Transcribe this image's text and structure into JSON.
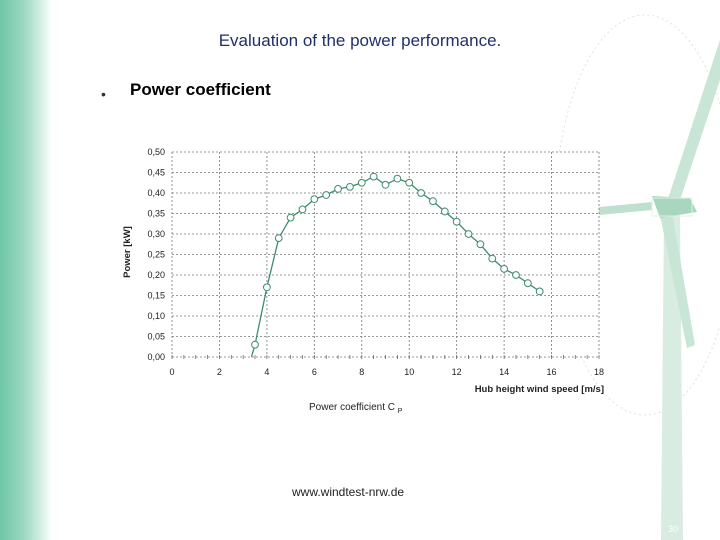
{
  "slide": {
    "title": "Evaluation of the power performance.",
    "bullet_marker": "•",
    "bullet": "Power coefficient",
    "caption_text": "Power coefficient C",
    "caption_sub": "P",
    "url": "www.windtest-nrw.de",
    "page_number": "30"
  },
  "colors": {
    "accent": "#8fd3bb",
    "curve": "#3e8c6a",
    "title": "#1f2f6b"
  },
  "chart_data": {
    "type": "line",
    "xlabel": "Hub height wind speed [m/s]",
    "ylabel": "Power [kW]",
    "xlim": [
      0,
      18
    ],
    "ylim": [
      0,
      0.5
    ],
    "grid": true,
    "x_ticks": [
      "0",
      "2",
      "4",
      "6",
      "8",
      "10",
      "12",
      "14",
      "16",
      "18"
    ],
    "y_ticks": [
      "0,00",
      "0,05",
      "0,10",
      "0,15",
      "0,20",
      "0,25",
      "0,30",
      "0,35",
      "0,40",
      "0,45",
      "0,50"
    ],
    "series": [
      {
        "x": [
          3.5,
          4.0,
          4.5,
          5.0,
          5.5,
          6.0,
          6.5,
          7.0,
          7.5,
          8.0,
          8.5,
          9.0,
          9.5,
          10.0,
          10.5,
          11.0,
          11.5,
          12.0,
          12.5,
          13.0,
          13.5,
          14.0,
          14.5,
          15.0,
          15.5
        ],
        "y": [
          0.03,
          0.17,
          0.29,
          0.34,
          0.36,
          0.385,
          0.395,
          0.41,
          0.415,
          0.425,
          0.44,
          0.42,
          0.435,
          0.425,
          0.4,
          0.38,
          0.355,
          0.33,
          0.3,
          0.275,
          0.24,
          0.215,
          0.2,
          0.18,
          0.16
        ]
      }
    ]
  }
}
